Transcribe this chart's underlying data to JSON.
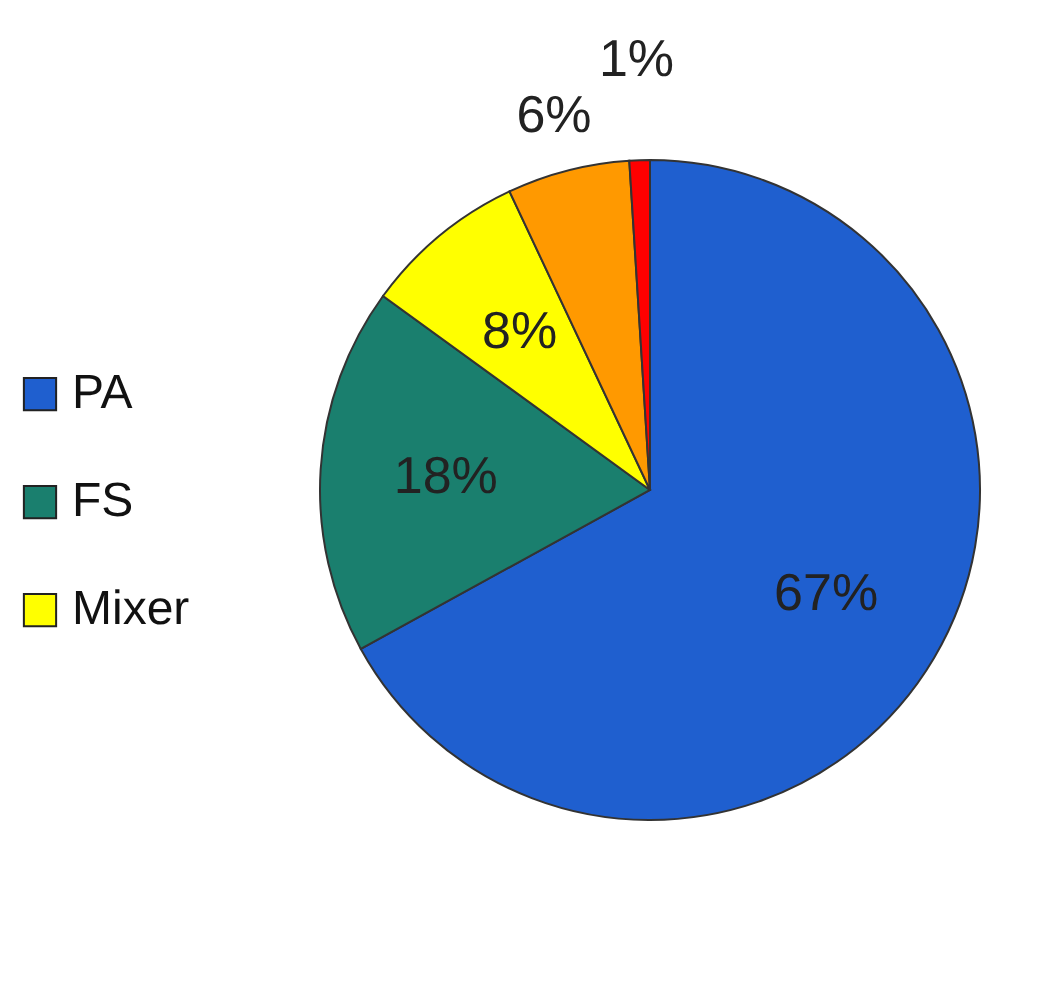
{
  "chart_data": {
    "type": "pie",
    "categories": [
      "PA",
      "FS",
      "Mixer",
      null,
      null
    ],
    "values": [
      67,
      18,
      8,
      6,
      1
    ],
    "colors": [
      "#1f5fcf",
      "#1a7f6e",
      "#ffff00",
      "#ff9900",
      "#ff0000"
    ],
    "value_labels": [
      "67%",
      "18%",
      "8%",
      "6%",
      "1%"
    ],
    "legend": "left"
  }
}
